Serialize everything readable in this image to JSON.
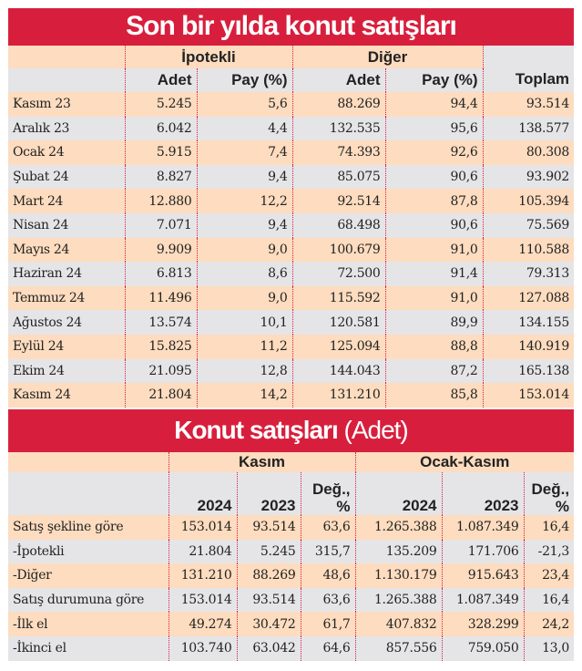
{
  "table1": {
    "title": "Son bir yılda konut satışları",
    "groups": [
      "İpotekli",
      "Diğer"
    ],
    "columns": [
      "Adet",
      "Pay (%)",
      "Adet",
      "Pay (%)",
      "Toplam"
    ],
    "rows": [
      [
        "Kasım 23",
        "5.245",
        "5,6",
        "88.269",
        "94,4",
        "93.514"
      ],
      [
        "Aralık 23",
        "6.042",
        "4,4",
        "132.535",
        "95,6",
        "138.577"
      ],
      [
        "Ocak 24",
        "5.915",
        "7,4",
        "74.393",
        "92,6",
        "80.308"
      ],
      [
        "Şubat 24",
        "8.827",
        "9,4",
        "85.075",
        "90,6",
        "93.902"
      ],
      [
        "Mart 24",
        "12.880",
        "12,2",
        "92.514",
        "87,8",
        "105.394"
      ],
      [
        "Nisan 24",
        "7.071",
        "9,4",
        "68.498",
        "90,6",
        "75.569"
      ],
      [
        "Mayıs 24",
        "9.909",
        "9,0",
        "100.679",
        "91,0",
        "110.588"
      ],
      [
        "Haziran 24",
        "6.813",
        "8,6",
        "72.500",
        "91,4",
        "79.313"
      ],
      [
        "Temmuz 24",
        "11.496",
        "9,0",
        "115.592",
        "91,0",
        "127.088"
      ],
      [
        "Ağustos 24",
        "13.574",
        "10,1",
        "120.581",
        "89,9",
        "134.155"
      ],
      [
        "Eylül 24",
        "15.825",
        "11,2",
        "125.094",
        "88,8",
        "140.919"
      ],
      [
        "Ekim 24",
        "21.095",
        "12,8",
        "144.043",
        "87,2",
        "165.138"
      ],
      [
        "Kasım 24",
        "21.804",
        "14,2",
        "131.210",
        "85,8",
        "153.014"
      ]
    ]
  },
  "table2": {
    "title": "Konut satışları",
    "title_unit": "(Adet)",
    "groups": [
      "Kasım",
      "Ocak-Kasım"
    ],
    "columns": [
      "2024",
      "2023",
      "Değ., %",
      "2024",
      "2023",
      "Değ., %"
    ],
    "deg_top": "Değ.,",
    "deg_bottom": "%",
    "rows": [
      [
        "Satış şekline göre",
        "153.014",
        "93.514",
        "63,6",
        "1.265.388",
        "1.087.349",
        "16,4"
      ],
      [
        "-İpotekli",
        "21.804",
        "5.245",
        "315,7",
        "135.209",
        "171.706",
        "-21,3"
      ],
      [
        "-Diğer",
        "131.210",
        "88.269",
        "48,6",
        "1.130.179",
        "915.643",
        "23,4"
      ],
      [
        "Satış durumuna göre",
        "153.014",
        "93.514",
        "63,6",
        "1.265.388",
        "1.087.349",
        "16,4"
      ],
      [
        "-İlk el",
        "49.274",
        "30.472",
        "61,7",
        "407.832",
        "328.299",
        "24,2"
      ],
      [
        "-İkinci el",
        "103.740",
        "63.042",
        "64,6",
        "857.556",
        "759.050",
        "13,0"
      ]
    ]
  },
  "colors": {
    "red": "#d71f3d",
    "peach": "#fddcbf",
    "gray": "#e5e5e8"
  }
}
